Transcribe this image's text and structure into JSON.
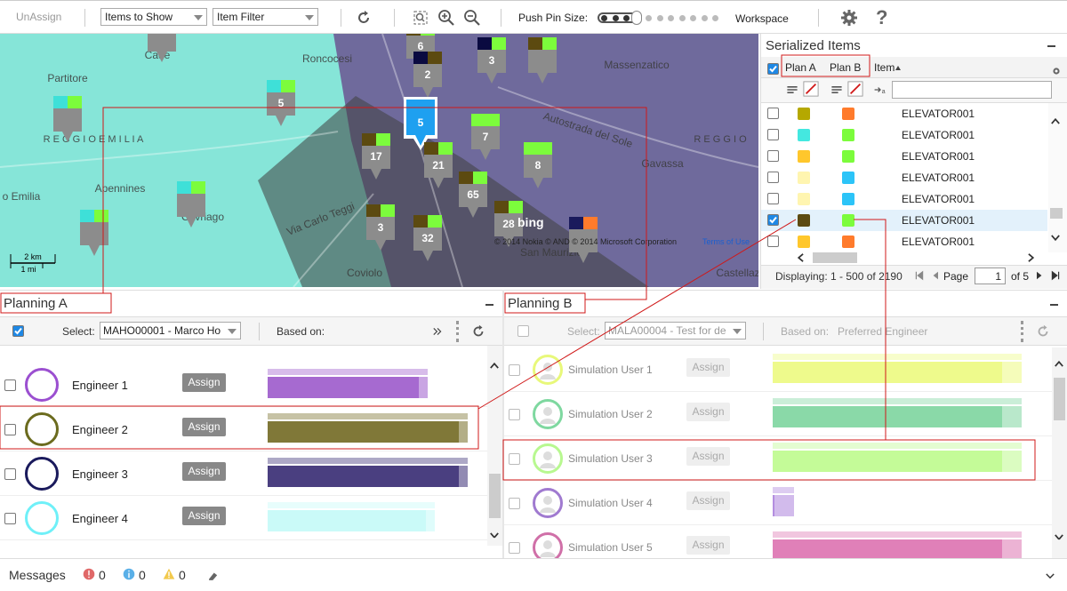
{
  "toolbar": {
    "unassign": "UnAssign",
    "items_to_show": "Items to Show",
    "item_filter": "Item Filter",
    "push_pin_size": "Push Pin Size:",
    "workspace": "Workspace",
    "help": "?"
  },
  "map": {
    "places": [
      "Cade",
      "Roncocesi",
      "Partitore",
      "Massenzatico",
      "Autostrada del Sole",
      "R E G G I O   E M I L I A",
      "R E G G I O",
      "Apennines",
      "o Emilia",
      "Cavriago",
      "Via Carlo Teggi",
      "Gavassa",
      "San Maurizio",
      "Coviolo",
      "Castellaz"
    ],
    "pin_counts": [
      6,
      2,
      3,
      5,
      5,
      7,
      17,
      21,
      8,
      65,
      3,
      32,
      28
    ],
    "scale_km": "2 km",
    "scale_mi": "1 mi",
    "logo": "bing",
    "copyright": "© 2014 Nokia © AND © 2014 Microsoft Corporation",
    "terms": "Terms of Use"
  },
  "serialized_items": {
    "title": "Serialized Items",
    "columns": [
      "Plan A",
      "Plan B",
      "Item"
    ],
    "rows": [
      {
        "plan_a_color": "#b5a800",
        "plan_b_color": "#ff7b2c",
        "item": "ELEVATOR001",
        "checked": false
      },
      {
        "plan_a_color": "#44e8e0",
        "plan_b_color": "#7cfc3c",
        "item": "ELEVATOR001",
        "checked": false
      },
      {
        "plan_a_color": "#ffc72c",
        "plan_b_color": "#7cfc3c",
        "item": "ELEVATOR001",
        "checked": false
      },
      {
        "plan_a_color": "#fff5b0",
        "plan_b_color": "#2cc4f8",
        "item": "ELEVATOR001",
        "checked": false
      },
      {
        "plan_a_color": "#fff5b0",
        "plan_b_color": "#2cc4f8",
        "item": "ELEVATOR001",
        "checked": false
      },
      {
        "plan_a_color": "#5c4a10",
        "plan_b_color": "#7cfc3c",
        "item": "ELEVATOR001",
        "checked": true
      },
      {
        "plan_a_color": "#ffc72c",
        "plan_b_color": "#ff7b2c",
        "item": "ELEVATOR001",
        "checked": false
      }
    ],
    "footer": {
      "displaying": "Displaying: 1 - 500 of 2190",
      "page": "Page",
      "page_number": 1,
      "of_pages": "of 5"
    }
  },
  "planning_a": {
    "title": "Planning A",
    "select_label": "Select:",
    "selected": "MAHO00001 - Marco Ho",
    "based_on": "Based on:",
    "rows": [
      {
        "name": "Engineer 1",
        "button": "Assign",
        "color": "#9b4fd0",
        "bar_color": "#a66ad0"
      },
      {
        "name": "Engineer 2",
        "button": "Assign",
        "color": "#6b6b1e",
        "bar_color": "#807838"
      },
      {
        "name": "Engineer 3",
        "button": "Assign",
        "color": "#1a1a5c",
        "bar_color": "#4a3f80"
      },
      {
        "name": "Engineer 4",
        "button": "Assign",
        "color": "#6ff0f8",
        "bar_color": "#cafaf8"
      }
    ]
  },
  "planning_b": {
    "title": "Planning B",
    "select_label": "Select:",
    "selected": "MALA00004 - Test for de",
    "based_on": "Based on:",
    "based_on_value": "Preferred Engineer",
    "rows": [
      {
        "name": "Simulation User 1",
        "button": "Assign",
        "color": "#e8f87a",
        "bar_color": "#eefa8c"
      },
      {
        "name": "Simulation User 2",
        "button": "Assign",
        "color": "#7fd8a0",
        "bar_color": "#8ad9a8"
      },
      {
        "name": "Simulation User 3",
        "button": "Assign",
        "color": "#b8f890",
        "bar_color": "#c4fb98"
      },
      {
        "name": "Simulation User 4",
        "button": "Assign",
        "color": "#a07ad0",
        "bar_color": "#b48ee0"
      },
      {
        "name": "Simulation User 5",
        "button": "Assign",
        "color": "#d070a8",
        "bar_color": "#e080b8"
      }
    ]
  },
  "messages": {
    "label": "Messages",
    "errors": 0,
    "info": 0,
    "warnings": 0
  }
}
